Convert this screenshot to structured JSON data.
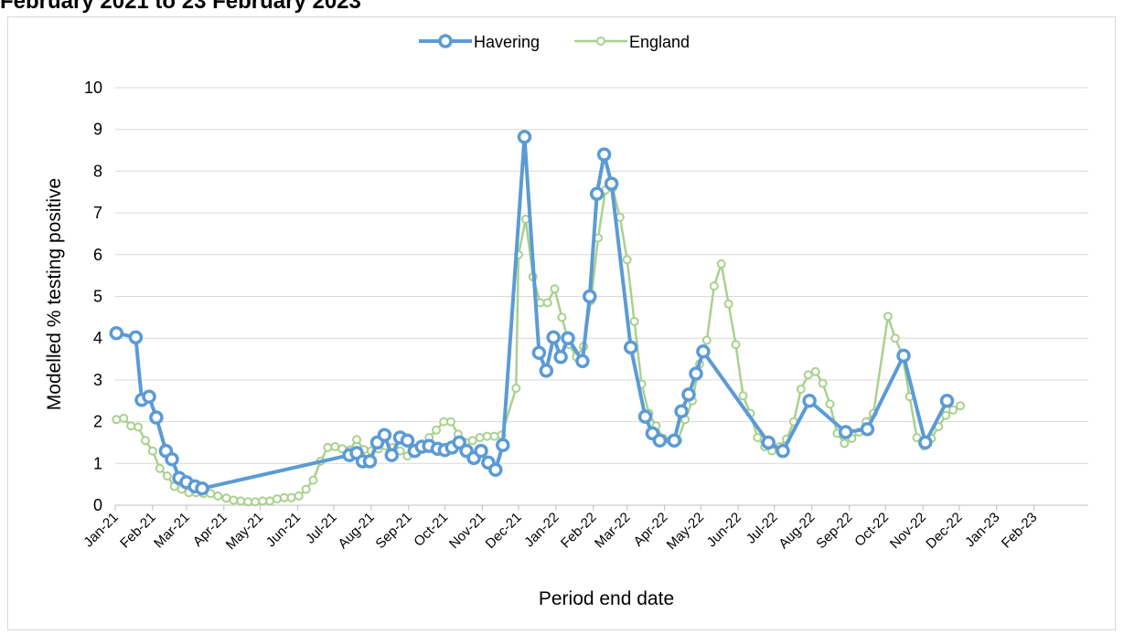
{
  "page": {
    "title": "February 2021 to 23 February 2023"
  },
  "chart_data": {
    "type": "line",
    "title": "February 2021 to 23 February 2023",
    "xlabel": "Period end date",
    "ylabel": "Modelled % testing positive",
    "ylim": [
      0,
      10
    ],
    "yticks": [
      "0",
      "1",
      "2",
      "3",
      "4",
      "5",
      "6",
      "7",
      "8",
      "9",
      "10"
    ],
    "xlim": [
      "2021-01-01",
      "2023-03-18"
    ],
    "x_tick_dates": [
      "2021-01-01",
      "2021-02-01",
      "2021-03-01",
      "2021-04-01",
      "2021-05-01",
      "2021-06-01",
      "2021-07-01",
      "2021-08-01",
      "2021-09-01",
      "2021-10-01",
      "2021-11-01",
      "2021-12-01",
      "2022-01-01",
      "2022-02-01",
      "2022-03-01",
      "2022-04-01",
      "2022-05-01",
      "2022-06-01",
      "2022-07-01",
      "2022-08-01",
      "2022-09-01",
      "2022-10-01",
      "2022-11-01",
      "2022-12-01",
      "2023-01-01",
      "2023-02-01"
    ],
    "x_tick_labels": [
      "Jan-21",
      "Feb-21",
      "Mar-21",
      "Apr-21",
      "May-21",
      "Jun-21",
      "Jul-21",
      "Aug-21",
      "Sep-21",
      "Oct-21",
      "Nov-21",
      "Dec-21",
      "Jan-22",
      "Feb-22",
      "Mar-22",
      "Apr-22",
      "May-22",
      "Jun-22",
      "Jul-22",
      "Aug-22",
      "Sep-22",
      "Oct-22",
      "Nov-22",
      "Dec-22",
      "Jan-23",
      "Feb-23"
    ],
    "grid": true,
    "legend_position": "top-center",
    "series": [
      {
        "name": "Havering",
        "color": "#5b9bd5",
        "points": [
          [
            "2021-01-02",
            4.12
          ],
          [
            "2021-01-18",
            4.02
          ],
          [
            "2021-01-23",
            2.52
          ],
          [
            "2021-01-29",
            2.6
          ],
          [
            "2021-02-04",
            2.1
          ],
          [
            "2021-02-12",
            1.3
          ],
          [
            "2021-02-17",
            1.1
          ],
          [
            "2021-02-23",
            0.65
          ],
          [
            "2021-03-01",
            0.55
          ],
          [
            "2021-03-08",
            0.45
          ],
          [
            "2021-03-14",
            0.4
          ],
          [
            "2021-07-14",
            1.2
          ],
          [
            "2021-07-20",
            1.25
          ],
          [
            "2021-07-25",
            1.05
          ],
          [
            "2021-07-31",
            1.05
          ],
          [
            "2021-08-06",
            1.5
          ],
          [
            "2021-08-12",
            1.68
          ],
          [
            "2021-08-18",
            1.2
          ],
          [
            "2021-08-25",
            1.62
          ],
          [
            "2021-08-31",
            1.55
          ],
          [
            "2021-09-06",
            1.3
          ],
          [
            "2021-09-12",
            1.4
          ],
          [
            "2021-09-18",
            1.42
          ],
          [
            "2021-09-25",
            1.35
          ],
          [
            "2021-10-01",
            1.32
          ],
          [
            "2021-10-07",
            1.38
          ],
          [
            "2021-10-13",
            1.5
          ],
          [
            "2021-10-19",
            1.3
          ],
          [
            "2021-10-25",
            1.13
          ],
          [
            "2021-10-31",
            1.3
          ],
          [
            "2021-11-06",
            1.02
          ],
          [
            "2021-11-12",
            0.85
          ],
          [
            "2021-11-18",
            1.44
          ],
          [
            "2021-12-06",
            8.82
          ],
          [
            "2021-12-18",
            3.65
          ],
          [
            "2021-12-24",
            3.22
          ],
          [
            "2021-12-30",
            4.02
          ],
          [
            "2022-01-05",
            3.55
          ],
          [
            "2022-01-11",
            4.0
          ],
          [
            "2022-01-23",
            3.45
          ],
          [
            "2022-01-29",
            5.0
          ],
          [
            "2022-02-04",
            7.46
          ],
          [
            "2022-02-10",
            8.4
          ],
          [
            "2022-02-16",
            7.7
          ],
          [
            "2022-03-04",
            3.78
          ],
          [
            "2022-03-16",
            2.12
          ],
          [
            "2022-03-22",
            1.72
          ],
          [
            "2022-03-28",
            1.55
          ],
          [
            "2022-04-09",
            1.55
          ],
          [
            "2022-04-15",
            2.25
          ],
          [
            "2022-04-21",
            2.65
          ],
          [
            "2022-04-27",
            3.15
          ],
          [
            "2022-05-03",
            3.68
          ],
          [
            "2022-06-26",
            1.5
          ],
          [
            "2022-07-08",
            1.3
          ],
          [
            "2022-07-30",
            2.5
          ],
          [
            "2022-08-29",
            1.75
          ],
          [
            "2022-09-16",
            1.82
          ],
          [
            "2022-10-16",
            3.58
          ],
          [
            "2022-11-03",
            1.5
          ],
          [
            "2022-11-21",
            2.5
          ]
        ]
      },
      {
        "name": "England",
        "color": "#a9d18e",
        "points": [
          [
            "2021-01-02",
            2.05
          ],
          [
            "2021-01-08",
            2.08
          ],
          [
            "2021-01-14",
            1.9
          ],
          [
            "2021-01-20",
            1.87
          ],
          [
            "2021-01-26",
            1.55
          ],
          [
            "2021-02-01",
            1.3
          ],
          [
            "2021-02-07",
            0.88
          ],
          [
            "2021-02-13",
            0.7
          ],
          [
            "2021-02-19",
            0.45
          ],
          [
            "2021-02-25",
            0.38
          ],
          [
            "2021-03-03",
            0.3
          ],
          [
            "2021-03-09",
            0.3
          ],
          [
            "2021-03-15",
            0.28
          ],
          [
            "2021-03-21",
            0.28
          ],
          [
            "2021-03-27",
            0.22
          ],
          [
            "2021-04-03",
            0.17
          ],
          [
            "2021-04-09",
            0.12
          ],
          [
            "2021-04-15",
            0.1
          ],
          [
            "2021-04-21",
            0.08
          ],
          [
            "2021-04-27",
            0.08
          ],
          [
            "2021-05-03",
            0.1
          ],
          [
            "2021-05-09",
            0.1
          ],
          [
            "2021-05-15",
            0.15
          ],
          [
            "2021-05-21",
            0.18
          ],
          [
            "2021-05-27",
            0.18
          ],
          [
            "2021-06-02",
            0.22
          ],
          [
            "2021-06-08",
            0.38
          ],
          [
            "2021-06-14",
            0.6
          ],
          [
            "2021-06-20",
            1.05
          ],
          [
            "2021-06-26",
            1.38
          ],
          [
            "2021-07-02",
            1.4
          ],
          [
            "2021-07-08",
            1.35
          ],
          [
            "2021-07-14",
            1.32
          ],
          [
            "2021-07-20",
            1.57
          ],
          [
            "2021-07-26",
            1.33
          ],
          [
            "2021-08-01",
            1.3
          ],
          [
            "2021-08-07",
            1.35
          ],
          [
            "2021-08-13",
            1.42
          ],
          [
            "2021-08-19",
            1.38
          ],
          [
            "2021-08-25",
            1.3
          ],
          [
            "2021-08-31",
            1.18
          ],
          [
            "2021-09-06",
            1.25
          ],
          [
            "2021-09-12",
            1.45
          ],
          [
            "2021-09-18",
            1.62
          ],
          [
            "2021-09-24",
            1.8
          ],
          [
            "2021-09-30",
            2.0
          ],
          [
            "2021-10-06",
            2.0
          ],
          [
            "2021-10-12",
            1.7
          ],
          [
            "2021-10-18",
            1.5
          ],
          [
            "2021-10-24",
            1.55
          ],
          [
            "2021-10-30",
            1.62
          ],
          [
            "2021-11-05",
            1.65
          ],
          [
            "2021-11-11",
            1.65
          ],
          [
            "2021-11-17",
            1.68
          ],
          [
            "2021-11-29",
            2.8
          ],
          [
            "2021-12-01",
            6.0
          ],
          [
            "2021-12-07",
            6.85
          ],
          [
            "2021-12-13",
            5.47
          ],
          [
            "2021-12-19",
            4.85
          ],
          [
            "2021-12-25",
            4.85
          ],
          [
            "2021-12-31",
            5.18
          ],
          [
            "2022-01-06",
            4.5
          ],
          [
            "2022-01-12",
            3.85
          ],
          [
            "2022-01-18",
            3.55
          ],
          [
            "2022-01-24",
            3.8
          ],
          [
            "2022-01-30",
            4.9
          ],
          [
            "2022-02-05",
            6.4
          ],
          [
            "2022-02-11",
            7.55
          ],
          [
            "2022-02-17",
            7.6
          ],
          [
            "2022-02-23",
            6.9
          ],
          [
            "2022-03-01",
            5.88
          ],
          [
            "2022-03-07",
            4.4
          ],
          [
            "2022-03-13",
            2.9
          ],
          [
            "2022-03-19",
            2.2
          ],
          [
            "2022-03-25",
            1.9
          ],
          [
            "2022-03-31",
            1.6
          ],
          [
            "2022-04-06",
            1.55
          ],
          [
            "2022-04-12",
            1.55
          ],
          [
            "2022-04-18",
            2.05
          ],
          [
            "2022-04-24",
            2.5
          ],
          [
            "2022-04-30",
            3.38
          ],
          [
            "2022-05-06",
            3.95
          ],
          [
            "2022-05-12",
            5.25
          ],
          [
            "2022-05-18",
            5.78
          ],
          [
            "2022-05-24",
            4.82
          ],
          [
            "2022-05-30",
            3.85
          ],
          [
            "2022-06-05",
            2.62
          ],
          [
            "2022-06-11",
            2.2
          ],
          [
            "2022-06-17",
            1.62
          ],
          [
            "2022-06-23",
            1.4
          ],
          [
            "2022-06-29",
            1.3
          ],
          [
            "2022-07-05",
            1.4
          ],
          [
            "2022-07-11",
            1.58
          ],
          [
            "2022-07-17",
            2.0
          ],
          [
            "2022-07-23",
            2.78
          ],
          [
            "2022-07-29",
            3.12
          ],
          [
            "2022-08-04",
            3.2
          ],
          [
            "2022-08-10",
            2.92
          ],
          [
            "2022-08-16",
            2.42
          ],
          [
            "2022-08-22",
            1.72
          ],
          [
            "2022-08-28",
            1.48
          ],
          [
            "2022-09-03",
            1.6
          ],
          [
            "2022-09-09",
            1.75
          ],
          [
            "2022-09-15",
            2.0
          ],
          [
            "2022-09-21",
            2.2
          ],
          [
            "2022-10-03",
            4.52
          ],
          [
            "2022-10-09",
            4.0
          ],
          [
            "2022-10-15",
            3.6
          ],
          [
            "2022-10-21",
            2.6
          ],
          [
            "2022-10-27",
            1.62
          ],
          [
            "2022-11-02",
            1.42
          ],
          [
            "2022-11-08",
            1.6
          ],
          [
            "2022-11-14",
            1.88
          ],
          [
            "2022-11-20",
            2.15
          ],
          [
            "2022-11-26",
            2.28
          ],
          [
            "2022-12-02",
            2.38
          ]
        ]
      }
    ]
  }
}
